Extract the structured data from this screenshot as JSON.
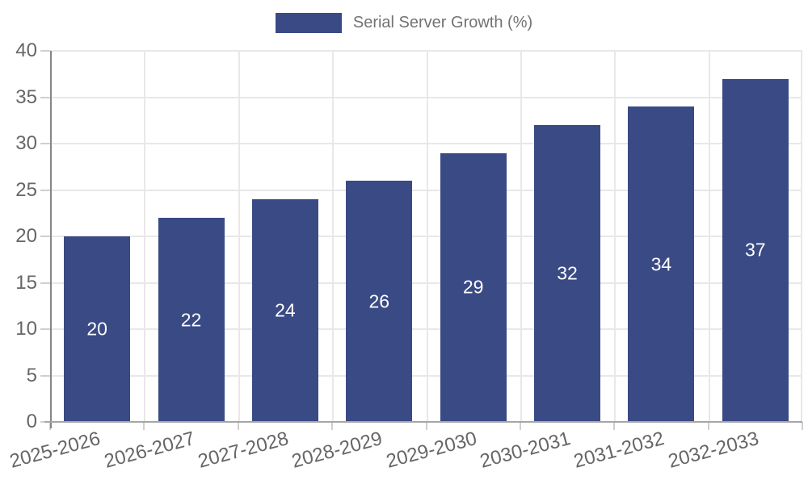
{
  "legend": {
    "label": "Serial Server Growth (%)"
  },
  "chart_data": {
    "type": "bar",
    "title": "Serial Server Growth (%)",
    "categories": [
      "2025-2026",
      "2026-2027",
      "2027-2028",
      "2028-2029",
      "2029-2030",
      "2030-2031",
      "2031-2032",
      "2032-2033"
    ],
    "values": [
      20,
      22,
      24,
      26,
      29,
      32,
      34,
      37
    ],
    "bar_value_labels": [
      "20",
      "22",
      "24",
      "26",
      "29",
      "32",
      "34",
      "37"
    ],
    "xlabel": "",
    "ylabel": "",
    "ylim": [
      0,
      40
    ],
    "yticks": [
      0,
      5,
      10,
      15,
      20,
      25,
      30,
      35,
      40
    ],
    "grid": true,
    "legend_position": "top-center",
    "x_label_rotation_deg": -15
  },
  "colors": {
    "bar_fill": "#3A4A84",
    "bar_label_text": "#FFFFFF",
    "tick_label_text": "#666666",
    "legend_text": "#737373",
    "gridline": "#E8E8E8",
    "tick_mark": "#CFCFCF",
    "left_axis": "#858585",
    "bottom_axis": "#A6A6A6",
    "background": "#FFFFFF"
  }
}
